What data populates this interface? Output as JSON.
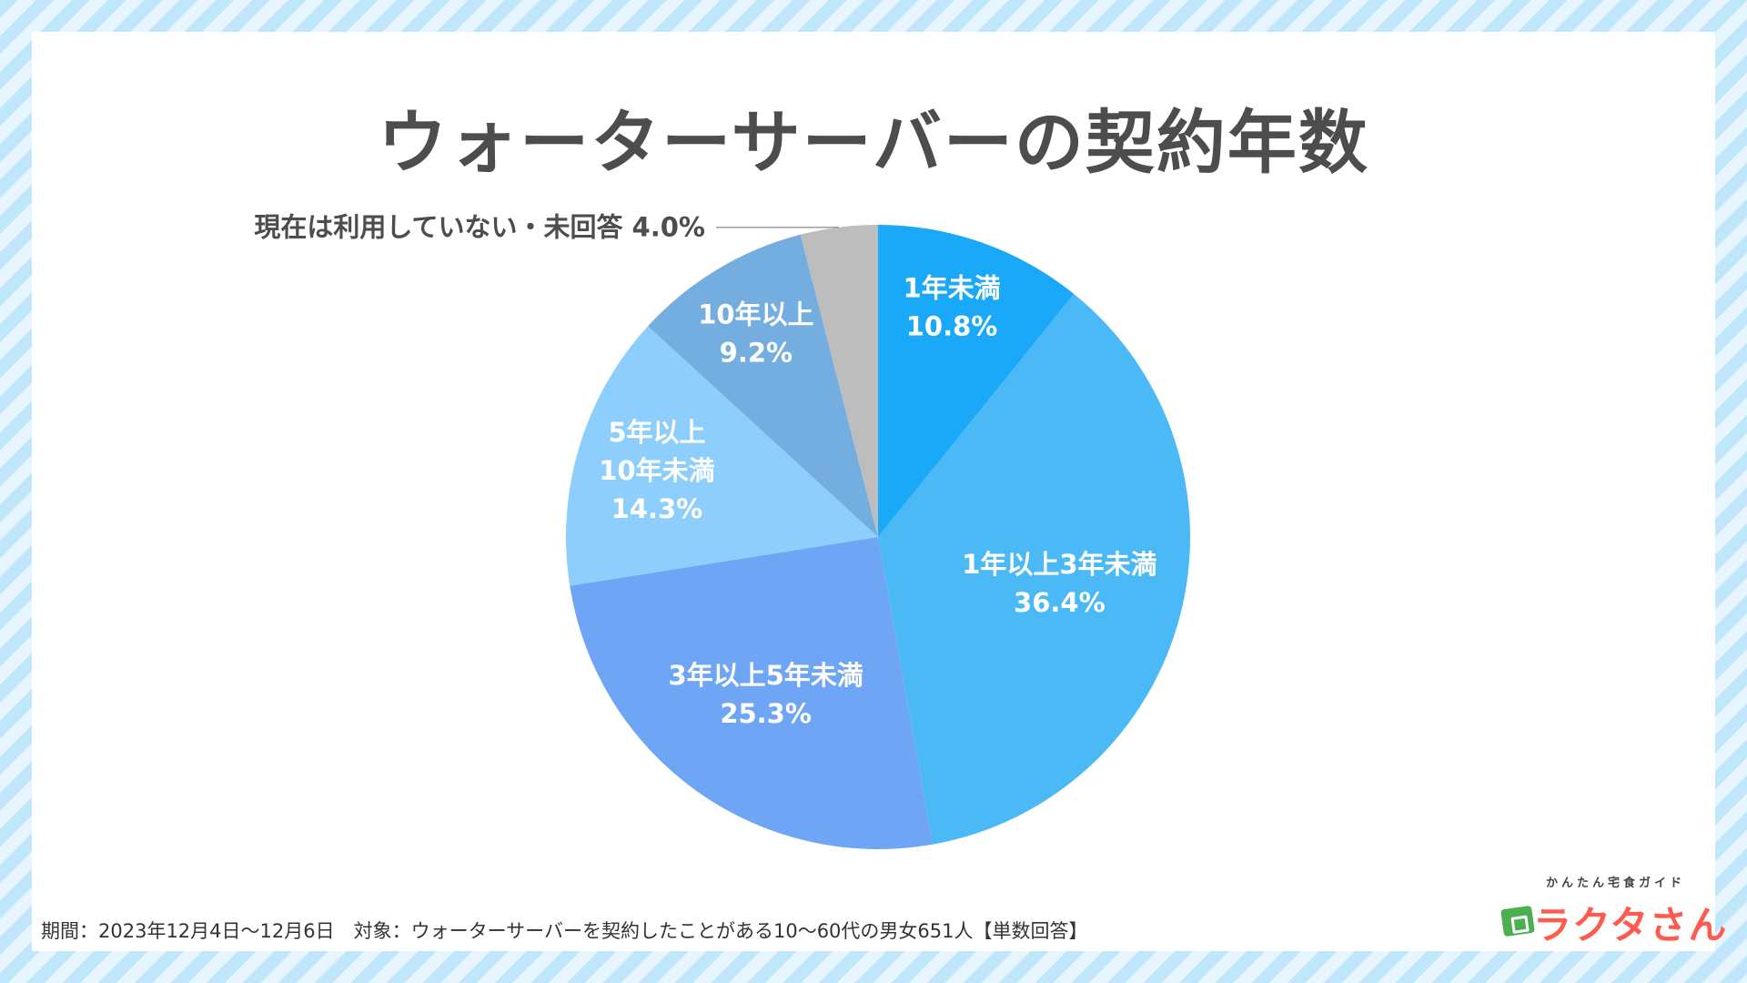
{
  "title": "ウォーターサーバーの契約年数",
  "footnote": "期間：2023年12月4日〜12月6日　対象：ウォーターサーバーを契約したことがある10〜60代の男女651人【単数回答】",
  "logo": {
    "subtitle": "かんたん宅食ガイド",
    "name": "ラクタさん",
    "icon": "shopping-bag-icon"
  },
  "chart_data": {
    "type": "pie",
    "title": "ウォーターサーバーの契約年数",
    "start": "12 o'clock",
    "direction": "clockwise",
    "slices": [
      {
        "label_lines": [
          "1年未満"
        ],
        "value": 10.8,
        "value_text": "10.8%",
        "color": "#1aa8f8"
      },
      {
        "label_lines": [
          "1年以上3年未満"
        ],
        "value": 36.4,
        "value_text": "36.4%",
        "color": "#4ab9f6"
      },
      {
        "label_lines": [
          "3年以上5年未満"
        ],
        "value": 25.3,
        "value_text": "25.3%",
        "color": "#6fa5f5"
      },
      {
        "label_lines": [
          "5年以上",
          "10年未満"
        ],
        "value": 14.3,
        "value_text": "14.3%",
        "color": "#8dcefc"
      },
      {
        "label_lines": [
          "10年以上"
        ],
        "value": 9.2,
        "value_text": "9.2%",
        "color": "#74aee0"
      },
      {
        "label_lines": [
          "現在は利用していない・未回答"
        ],
        "value": 4.0,
        "value_text": "4.0%",
        "color": "#bdbdbd",
        "label_outside": true
      }
    ]
  }
}
